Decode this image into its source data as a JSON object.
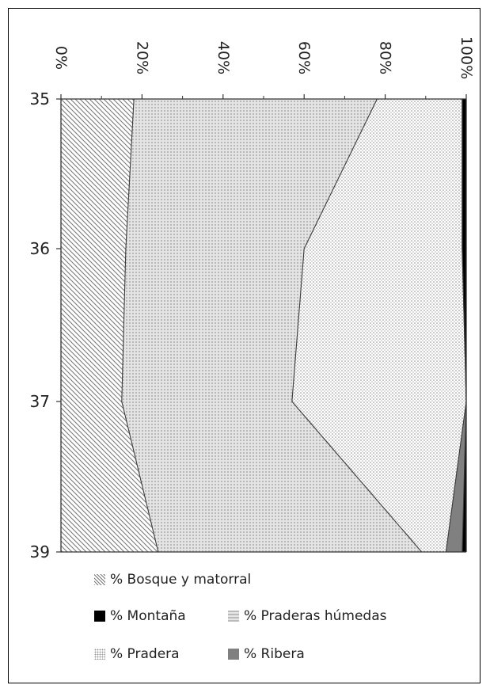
{
  "chart_data": {
    "type": "area",
    "stacked": "100%",
    "orientation": "vertical",
    "categories": [
      "35",
      "36",
      "37",
      "39"
    ],
    "value_axis": {
      "ticks": [
        "0%",
        "20%",
        "40%",
        "60%",
        "80%",
        "100%"
      ],
      "range": [
        0,
        100
      ]
    },
    "series": [
      {
        "name": "% Bosque y matorral",
        "values": [
          18,
          16,
          15,
          24
        ],
        "color": "#d9d9d9",
        "pattern": "diagonal-hatch"
      },
      {
        "name": "% Praderas húmedas",
        "values": [
          60,
          44,
          42,
          65
        ],
        "color": "#c8c8c8",
        "pattern": "grid-dots"
      },
      {
        "name": "% Pradera",
        "values": [
          21,
          39,
          43,
          6
        ],
        "color": "#e6e6e6",
        "pattern": "fine-dots"
      },
      {
        "name": "% Ribera",
        "values": [
          0,
          0,
          0,
          4
        ],
        "color": "#808080",
        "pattern": "solid"
      },
      {
        "name": "% Montaña",
        "values": [
          1,
          1,
          0,
          1
        ],
        "color": "#000000",
        "pattern": "solid"
      }
    ],
    "legend": {
      "placement": "bottom",
      "order": [
        "% Bosque y matorral",
        "% Montaña",
        "% Praderas húmedas",
        "% Pradera",
        "% Ribera"
      ]
    }
  }
}
